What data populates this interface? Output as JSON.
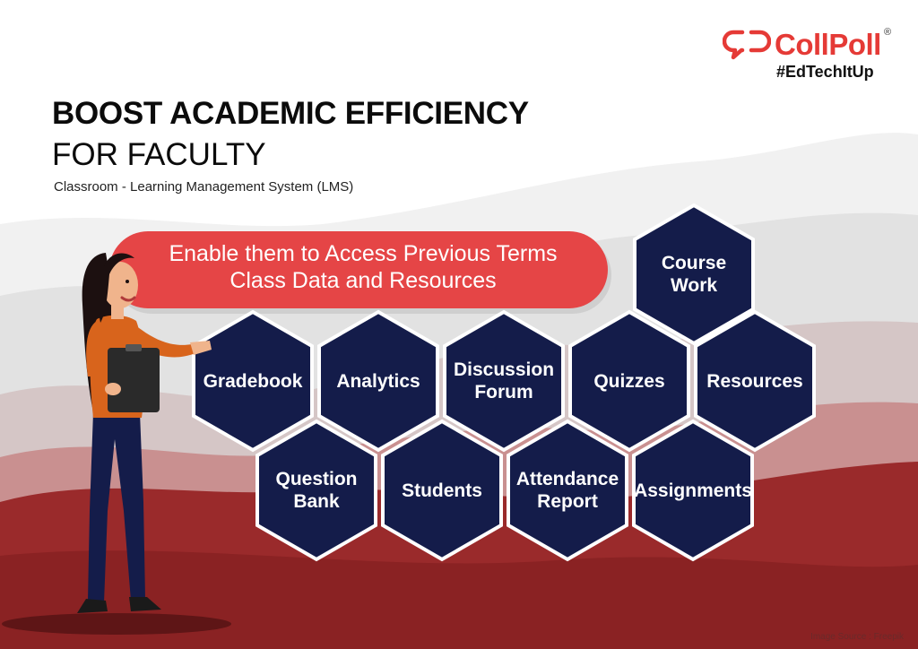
{
  "brand": {
    "name": "CollPoll",
    "registered": "®",
    "tagline": "#EdTechItUp",
    "color": "#e53a36"
  },
  "heading": {
    "title": "BOOST ACADEMIC EFFICIENCY",
    "subtitle": "FOR FACULTY",
    "caption": "Classroom - Learning Management System (LMS)"
  },
  "banner": {
    "line1": "Enable them to Access Previous Terms",
    "line2": "Class Data and Resources",
    "color": "#e54546"
  },
  "modules": [
    {
      "label": "Course Work",
      "icon": "hexagon"
    },
    {
      "label": "Gradebook",
      "icon": "hexagon"
    },
    {
      "label": "Analytics",
      "icon": "hexagon"
    },
    {
      "label": "Discussion Forum",
      "icon": "hexagon"
    },
    {
      "label": "Quizzes",
      "icon": "hexagon"
    },
    {
      "label": "Resources",
      "icon": "hexagon"
    },
    {
      "label": "Question Bank",
      "icon": "hexagon"
    },
    {
      "label": "Students",
      "icon": "hexagon"
    },
    {
      "label": "Attendance Report",
      "icon": "hexagon"
    },
    {
      "label": "Assignments",
      "icon": "hexagon"
    }
  ],
  "colors": {
    "hex_fill": "#141c4a",
    "hex_border": "#ffffff",
    "ground": "#9a2a2b",
    "hills": "#dcdcdc"
  },
  "credit": "Image Source : Freepik"
}
